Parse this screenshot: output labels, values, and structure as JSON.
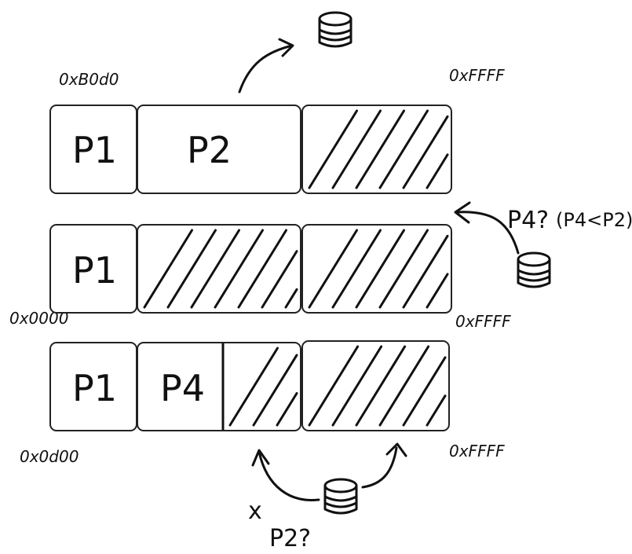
{
  "rows": [
    {
      "addr_left": "0xB0d0",
      "addr_right": "0xFFFF",
      "segments": [
        {
          "label": "P1",
          "hatched": false
        },
        {
          "label": "P2",
          "hatched": false
        },
        {
          "label": "",
          "hatched": true
        }
      ]
    },
    {
      "addr_left": "0x0000",
      "addr_right": "0xFFFF",
      "segments": [
        {
          "label": "P1",
          "hatched": false
        },
        {
          "label": "",
          "hatched": true
        },
        {
          "label": "",
          "hatched": true
        }
      ]
    },
    {
      "addr_left": "0x0d00",
      "addr_right": "0xFFFF",
      "segments": [
        {
          "label": "P1",
          "hatched": false
        },
        {
          "label": "P4",
          "hatched": false
        },
        {
          "label": "",
          "hatched": true
        },
        {
          "label": "",
          "hatched": true
        }
      ]
    }
  ],
  "annotations": {
    "p4_question": "P4?",
    "p4_condition": "(P4<P2)",
    "p2_question": "P2?",
    "x_mark": "x"
  },
  "icons": [
    "disk-icon"
  ]
}
